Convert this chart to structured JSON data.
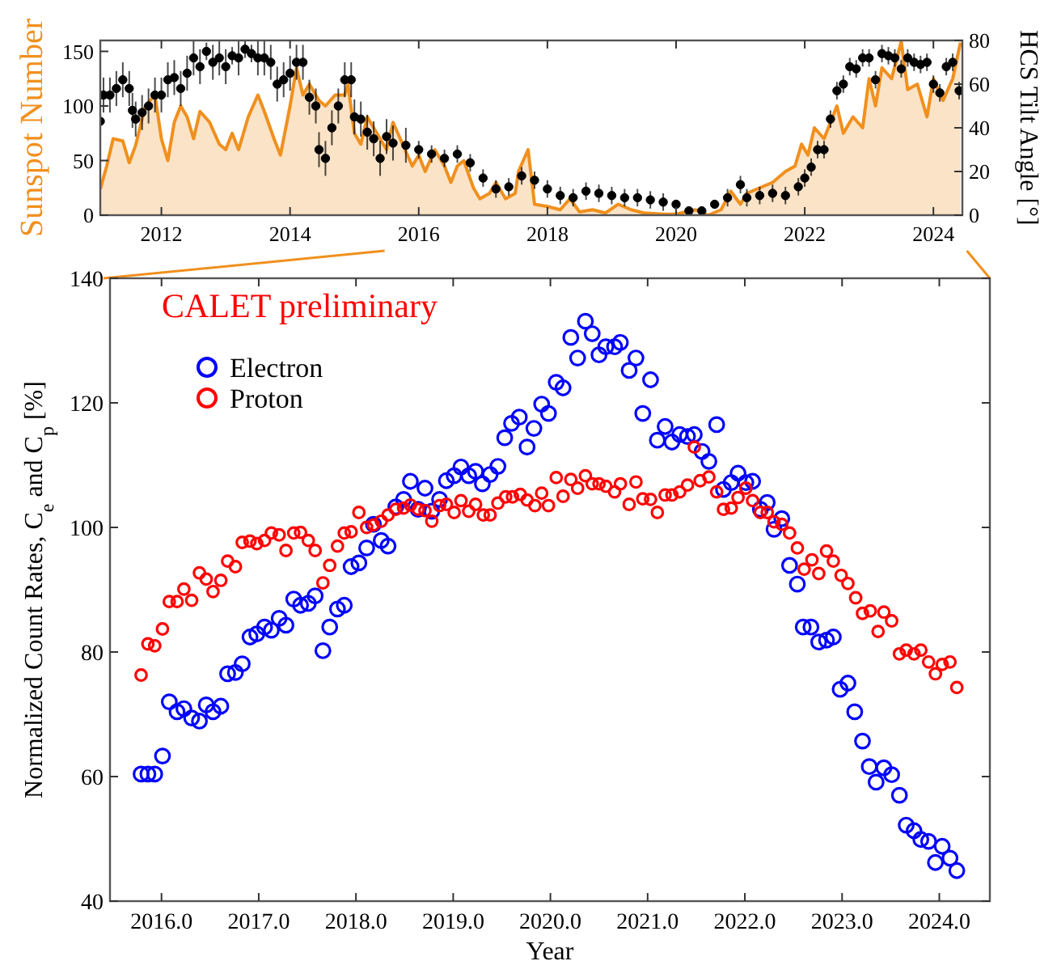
{
  "chart_data": [
    {
      "type": "area",
      "ylabel": "Sunspot Number",
      "y2label": "HCS Tilt Angle [°]",
      "xlim": [
        2011.05,
        2024.45
      ],
      "xticks": [
        2012,
        2014,
        2016,
        2018,
        2020,
        2022,
        2024
      ],
      "ylim": [
        0,
        160
      ],
      "yticks": [
        0,
        50,
        100,
        150
      ],
      "y2lim": [
        0,
        80
      ],
      "y2ticks": [
        0,
        20,
        40,
        60,
        80
      ],
      "grid": false,
      "legend": false,
      "series": [
        {
          "color": "#f0901e",
          "x": [
            2011.05,
            2011.15,
            2011.25,
            2011.4,
            2011.5,
            2011.6,
            2011.75,
            2011.9,
            2012.0,
            2012.1,
            2012.2,
            2012.3,
            2012.4,
            2012.5,
            2012.6,
            2012.75,
            2012.9,
            2013.0,
            2013.1,
            2013.2,
            2013.35,
            2013.5,
            2013.6,
            2013.75,
            2013.85,
            2014.0,
            2014.1,
            2014.2,
            2014.3,
            2014.45,
            2014.55,
            2014.7,
            2014.85,
            2014.9,
            2015.0,
            2015.1,
            2015.2,
            2015.35,
            2015.5,
            2015.6,
            2015.75,
            2015.9,
            2016.0,
            2016.1,
            2016.25,
            2016.4,
            2016.5,
            2016.6,
            2016.7,
            2016.85,
            2016.95,
            2017.1,
            2017.2,
            2017.35,
            2017.5,
            2017.55,
            2017.7,
            2017.8,
            2018.0,
            2018.2,
            2018.35,
            2018.5,
            2018.7,
            2018.9,
            2019.1,
            2019.3,
            2019.5,
            2019.8,
            2020.0,
            2020.3,
            2020.5,
            2020.7,
            2020.85,
            2021.0,
            2021.1,
            2021.3,
            2021.5,
            2021.7,
            2021.85,
            2021.95,
            2022.05,
            2022.15,
            2022.3,
            2022.4,
            2022.5,
            2022.6,
            2022.75,
            2022.9,
            2023.0,
            2023.1,
            2023.2,
            2023.35,
            2023.5,
            2023.6,
            2023.75,
            2023.9,
            2024.0,
            2024.15,
            2024.3,
            2024.42
          ],
          "values": [
            24,
            45,
            70,
            68,
            48,
            64,
            100,
            110,
            70,
            50,
            85,
            100,
            90,
            70,
            95,
            85,
            65,
            60,
            75,
            60,
            90,
            110,
            95,
            70,
            55,
            100,
            135,
            110,
            120,
            105,
            100,
            110,
            110,
            120,
            75,
            65,
            90,
            75,
            60,
            85,
            65,
            45,
            55,
            40,
            60,
            45,
            30,
            45,
            50,
            25,
            15,
            20,
            30,
            15,
            20,
            40,
            60,
            10,
            8,
            5,
            15,
            3,
            5,
            2,
            10,
            5,
            2,
            1,
            1,
            5,
            0,
            5,
            22,
            10,
            20,
            25,
            30,
            40,
            45,
            65,
            55,
            80,
            70,
            85,
            100,
            75,
            90,
            80,
            125,
            100,
            135,
            125,
            159,
            115,
            120,
            90,
            125,
            105,
            125,
            158
          ]
        },
        {
          "type": "scatter",
          "axis": "y2",
          "color": "#000000",
          "x": [
            2011.05,
            2011.1,
            2011.2,
            2011.3,
            2011.4,
            2011.5,
            2011.55,
            2011.6,
            2011.7,
            2011.8,
            2011.9,
            2012.0,
            2012.1,
            2012.2,
            2012.3,
            2012.4,
            2012.5,
            2012.6,
            2012.7,
            2012.8,
            2012.9,
            2013.0,
            2013.1,
            2013.2,
            2013.3,
            2013.4,
            2013.5,
            2013.6,
            2013.7,
            2013.8,
            2013.9,
            2014.0,
            2014.1,
            2014.2,
            2014.3,
            2014.4,
            2014.45,
            2014.55,
            2014.65,
            2014.75,
            2014.85,
            2014.95,
            2015.0,
            2015.1,
            2015.2,
            2015.3,
            2015.4,
            2015.5,
            2015.6,
            2015.8,
            2016.0,
            2016.2,
            2016.4,
            2016.6,
            2016.8,
            2017.0,
            2017.2,
            2017.4,
            2017.6,
            2017.8,
            2018.0,
            2018.2,
            2018.4,
            2018.6,
            2018.8,
            2019.0,
            2019.2,
            2019.4,
            2019.6,
            2019.8,
            2020.0,
            2020.2,
            2020.4,
            2020.6,
            2020.8,
            2021.0,
            2021.1,
            2021.3,
            2021.5,
            2021.7,
            2021.9,
            2022.0,
            2022.1,
            2022.2,
            2022.3,
            2022.4,
            2022.5,
            2022.6,
            2022.7,
            2022.8,
            2022.9,
            2023.0,
            2023.1,
            2023.2,
            2023.3,
            2023.4,
            2023.5,
            2023.6,
            2023.7,
            2023.8,
            2023.9,
            2024.0,
            2024.1,
            2024.2,
            2024.3,
            2024.4
          ],
          "values": [
            43,
            55,
            55,
            58,
            62,
            58,
            48,
            44,
            47,
            50,
            55,
            55,
            62,
            63,
            58,
            65,
            72,
            68,
            75,
            70,
            72,
            68,
            73,
            72,
            76,
            74,
            72,
            72,
            70,
            60,
            62,
            65,
            70,
            70,
            54,
            50,
            30,
            26,
            40,
            50,
            62,
            62,
            45,
            44,
            38,
            35,
            26,
            36,
            33,
            32,
            30,
            28,
            26,
            28,
            24,
            17,
            12,
            13,
            18,
            16,
            12,
            9,
            8,
            11,
            10,
            9,
            8,
            8,
            7,
            6,
            5,
            2,
            2,
            5,
            8,
            14,
            8,
            9,
            10,
            9,
            13,
            17,
            22,
            30,
            30,
            44,
            57,
            60,
            68,
            67,
            72,
            72,
            62,
            74,
            73,
            72,
            67,
            72,
            70,
            69,
            70,
            60,
            56,
            68,
            70,
            57
          ],
          "errors": [
            8,
            8,
            8,
            8,
            8,
            8,
            8,
            8,
            8,
            8,
            8,
            8,
            8,
            8,
            8,
            8,
            8,
            8,
            4,
            8,
            8,
            8,
            4,
            8,
            4,
            4,
            8,
            8,
            8,
            8,
            8,
            8,
            8,
            8,
            8,
            8,
            8,
            8,
            8,
            8,
            8,
            8,
            8,
            8,
            8,
            8,
            8,
            8,
            8,
            8,
            4,
            4,
            4,
            4,
            4,
            4,
            4,
            4,
            4,
            4,
            4,
            4,
            4,
            4,
            4,
            4,
            4,
            4,
            4,
            4,
            1.5,
            1.5,
            1.5,
            1.5,
            4,
            4,
            4,
            4,
            4,
            4,
            4,
            4,
            4,
            4,
            4,
            4,
            4,
            4,
            4,
            4,
            4,
            4,
            4,
            4,
            4,
            4,
            4,
            4,
            4,
            4,
            4,
            4,
            4,
            4,
            4,
            4
          ]
        }
      ]
    },
    {
      "type": "scatter",
      "xlabel": "Year",
      "ylabel": "Normalized Count Rates, C$_{e}$ and C$_{p}$ [%]",
      "annotations": [
        "CALET preliminary"
      ],
      "xlim": [
        2015.47,
        2024.52
      ],
      "xticks": [
        {
          "value": 2016,
          "label": "2016.0"
        },
        {
          "value": 2017,
          "label": "2017.0"
        },
        {
          "value": 2018,
          "label": "2018.0"
        },
        {
          "value": 2019,
          "label": "2019.0"
        },
        {
          "value": 2020,
          "label": "2020.0"
        },
        {
          "value": 2021,
          "label": "2021.0"
        },
        {
          "value": 2022,
          "label": "2022.0"
        },
        {
          "value": 2023,
          "label": "2023.0"
        },
        {
          "value": 2024,
          "label": "2024.0"
        }
      ],
      "ylim": [
        40,
        140
      ],
      "yticks": [
        40,
        60,
        80,
        100,
        120,
        140
      ],
      "grid": false,
      "legend": "top left",
      "marker": "circle",
      "series": [
        {
          "name": "Electron",
          "color": "#0000ff",
          "x": [
            2015.79,
            2015.86,
            2015.93,
            2016.01,
            2016.08,
            2016.16,
            2016.23,
            2016.31,
            2016.39,
            2016.46,
            2016.53,
            2016.61,
            2016.68,
            2016.76,
            2016.83,
            2016.91,
            2016.98,
            2017.06,
            2017.13,
            2017.21,
            2017.28,
            2017.36,
            2017.43,
            2017.51,
            2017.58,
            2017.66,
            2017.73,
            2017.81,
            2017.88,
            2017.95,
            2018.03,
            2018.11,
            2018.18,
            2018.26,
            2018.33,
            2018.41,
            2018.49,
            2018.56,
            2018.64,
            2018.71,
            2018.78,
            2018.86,
            2018.93,
            2019.01,
            2019.08,
            2019.16,
            2019.23,
            2019.3,
            2019.38,
            2019.46,
            2019.53,
            2019.6,
            2019.68,
            2019.76,
            2019.83,
            2019.91,
            2019.98,
            2020.06,
            2020.13,
            2020.21,
            2020.28,
            2020.36,
            2020.43,
            2020.5,
            2020.57,
            2020.66,
            2020.72,
            2020.81,
            2020.88,
            2020.95,
            2021.03,
            2021.1,
            2021.18,
            2021.25,
            2021.33,
            2021.41,
            2021.48,
            2021.56,
            2021.63,
            2021.71,
            2021.78,
            2021.86,
            2021.93,
            2022.01,
            2022.08,
            2022.16,
            2022.23,
            2022.3,
            2022.38,
            2022.46,
            2022.54,
            2022.6,
            2022.68,
            2022.76,
            2022.84,
            2022.91,
            2022.98,
            2023.06,
            2023.13,
            2023.21,
            2023.28,
            2023.35,
            2023.43,
            2023.51,
            2023.59,
            2023.66,
            2023.74,
            2023.81,
            2023.89,
            2023.96,
            2024.03,
            2024.11,
            2024.18
          ],
          "values": [
            60.4,
            60.4,
            60.4,
            63.3,
            72.0,
            70.4,
            70.9,
            69.4,
            68.9,
            71.5,
            70.4,
            71.3,
            76.5,
            76.7,
            78.1,
            82.4,
            82.9,
            84.0,
            83.5,
            85.4,
            84.3,
            88.5,
            87.5,
            87.8,
            89.0,
            80.2,
            84.0,
            86.9,
            87.5,
            93.7,
            94.3,
            96.7,
            100.5,
            97.9,
            97.0,
            103.3,
            104.5,
            107.4,
            102.9,
            106.3,
            102.6,
            104.5,
            107.5,
            108.3,
            109.7,
            108.3,
            109.0,
            107.0,
            108.5,
            109.8,
            114.4,
            116.7,
            117.7,
            112.9,
            115.9,
            119.8,
            118.3,
            123.3,
            122.4,
            130.5,
            127.2,
            133.1,
            131.1,
            127.7,
            129.0,
            129.0,
            129.7,
            125.2,
            127.2,
            118.3,
            123.7,
            114.0,
            116.2,
            113.7,
            114.9,
            114.6,
            114.9,
            112.2,
            110.6,
            116.5,
            106.1,
            107.2,
            108.7,
            107.2,
            107.4,
            102.9,
            104.0,
            99.7,
            101.4,
            93.9,
            90.9,
            84.0,
            84.0,
            81.6,
            81.9,
            82.4,
            74.0,
            75.0,
            70.4,
            65.7,
            61.6,
            59.1,
            61.4,
            60.3,
            57.0,
            52.2,
            51.3,
            49.9,
            49.6,
            46.2,
            48.8,
            46.9,
            44.9
          ]
        },
        {
          "name": "Proton",
          "color": "#ff0000",
          "x": [
            2015.79,
            2015.86,
            2015.93,
            2016.01,
            2016.08,
            2016.16,
            2016.23,
            2016.31,
            2016.39,
            2016.46,
            2016.53,
            2016.61,
            2016.68,
            2016.76,
            2016.83,
            2016.91,
            2016.98,
            2017.06,
            2017.13,
            2017.21,
            2017.28,
            2017.36,
            2017.43,
            2017.51,
            2017.58,
            2017.66,
            2017.73,
            2017.81,
            2017.88,
            2017.95,
            2018.03,
            2018.11,
            2018.18,
            2018.26,
            2018.33,
            2018.41,
            2018.49,
            2018.56,
            2018.64,
            2018.71,
            2018.78,
            2018.86,
            2018.93,
            2019.01,
            2019.08,
            2019.16,
            2019.23,
            2019.31,
            2019.38,
            2019.46,
            2019.54,
            2019.61,
            2019.69,
            2019.76,
            2019.84,
            2019.91,
            2019.98,
            2020.06,
            2020.13,
            2020.21,
            2020.28,
            2020.36,
            2020.43,
            2020.5,
            2020.57,
            2020.66,
            2020.72,
            2020.81,
            2020.88,
            2020.95,
            2021.03,
            2021.1,
            2021.18,
            2021.25,
            2021.33,
            2021.41,
            2021.48,
            2021.54,
            2021.63,
            2021.71,
            2021.78,
            2021.86,
            2021.93,
            2022.01,
            2022.08,
            2022.16,
            2022.23,
            2022.3,
            2022.38,
            2022.46,
            2022.54,
            2022.61,
            2022.69,
            2022.76,
            2022.84,
            2022.91,
            2022.99,
            2023.06,
            2023.14,
            2023.21,
            2023.29,
            2023.37,
            2023.43,
            2023.51,
            2023.59,
            2023.66,
            2023.74,
            2023.81,
            2023.89,
            2023.96,
            2024.03,
            2024.11,
            2024.18
          ],
          "values": [
            76.3,
            81.3,
            81.0,
            83.7,
            88.1,
            88.1,
            90.1,
            88.3,
            92.7,
            91.7,
            89.7,
            91.5,
            94.6,
            93.7,
            97.6,
            97.8,
            97.4,
            97.9,
            99.1,
            98.8,
            96.3,
            99.1,
            99.2,
            97.9,
            96.3,
            91.1,
            93.9,
            97.0,
            99.1,
            99.3,
            102.4,
            100.0,
            100.4,
            101.0,
            102.0,
            102.9,
            103.1,
            103.6,
            102.9,
            102.7,
            101.0,
            103.5,
            103.7,
            102.4,
            104.3,
            102.6,
            103.7,
            102.0,
            102.0,
            103.9,
            104.9,
            104.9,
            105.3,
            104.4,
            103.5,
            105.5,
            103.5,
            108.0,
            105.0,
            107.7,
            106.3,
            108.3,
            107.0,
            107.0,
            106.6,
            105.7,
            107.0,
            103.7,
            107.3,
            104.6,
            104.5,
            102.4,
            105.2,
            105.2,
            105.7,
            106.8,
            112.9,
            107.5,
            108.1,
            105.7,
            102.9,
            103.1,
            104.8,
            106.3,
            104.3,
            102.4,
            102.4,
            100.9,
            100.5,
            99.1,
            96.7,
            93.3,
            94.8,
            92.6,
            96.2,
            94.6,
            92.3,
            91.0,
            88.7,
            86.2,
            86.6,
            83.3,
            86.4,
            85.0,
            79.7,
            80.3,
            79.7,
            80.3,
            78.4,
            76.5,
            78.0,
            78.4,
            74.3
          ]
        }
      ]
    }
  ]
}
